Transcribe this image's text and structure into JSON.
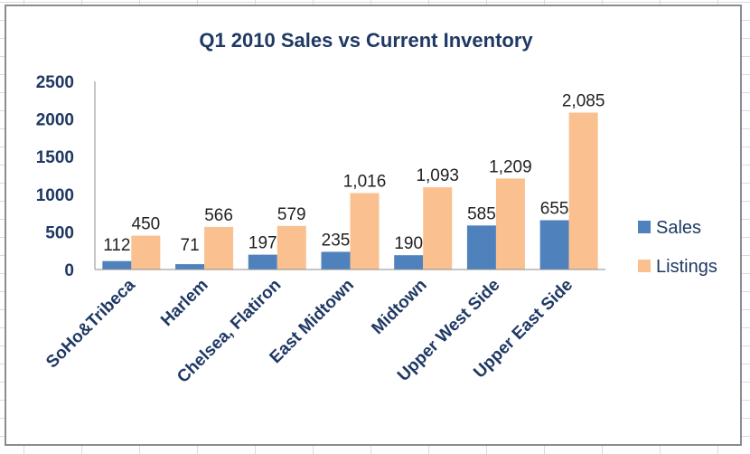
{
  "chart_data": {
    "type": "bar",
    "title": "Q1 2010 Sales vs Current Inventory",
    "xlabel": "",
    "ylabel": "",
    "categories": [
      "SoHo&Tribeca",
      "Harlem",
      "Chelsea, Flatiron",
      "East Midtown",
      "Midtown",
      "Upper West Side",
      "Upper East Side"
    ],
    "series": [
      {
        "name": "Sales",
        "values": [
          112,
          71,
          197,
          235,
          190,
          585,
          655
        ],
        "labels": [
          "112",
          "71",
          "197",
          "235",
          "190",
          "585",
          "655"
        ],
        "color": "#4f81bd"
      },
      {
        "name": "Listings",
        "values": [
          450,
          566,
          579,
          1016,
          1093,
          1209,
          2085
        ],
        "labels": [
          "450",
          "566",
          "579",
          "1,016",
          "1,093",
          "1,209",
          "2,085"
        ],
        "color": "#fac08f"
      }
    ],
    "ylim": [
      0,
      2500
    ],
    "yticks": [
      0,
      500,
      1000,
      1500,
      2000,
      2500
    ],
    "grid": false,
    "legend_position": "right"
  }
}
